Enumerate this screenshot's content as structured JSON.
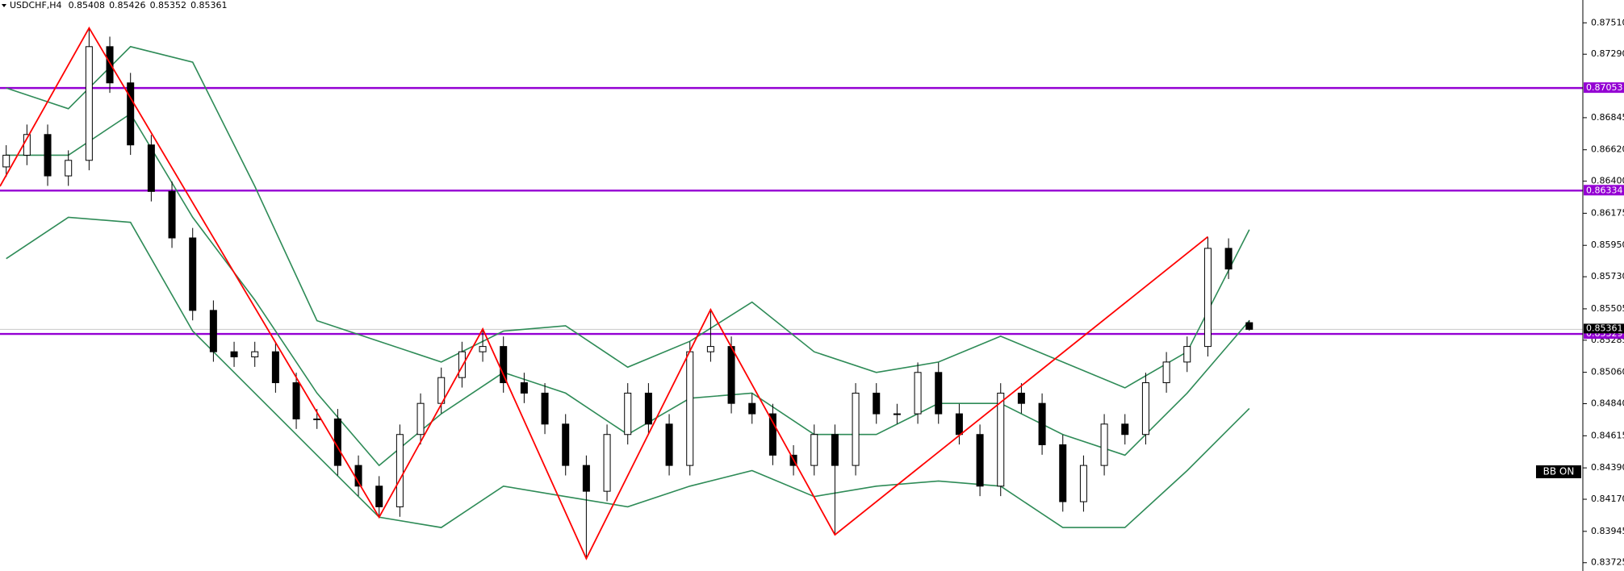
{
  "chart_data": {
    "type": "candlestick",
    "title": "USDCHF,H4",
    "open": [
      0.865,
      0.86582,
      0.86727,
      0.86437,
      0.86546,
      0.87343,
      0.87089,
      0.86654,
      0.86328,
      0.86002,
      0.85494,
      0.85204,
      0.85168,
      0.85204,
      0.84987,
      0.84733,
      0.84733,
      0.84407,
      0.84262,
      0.84117,
      0.84624,
      0.84842,
      0.85023,
      0.85204,
      0.85241,
      0.84987,
      0.84914,
      0.84697,
      0.84407,
      0.84226,
      0.84624,
      0.84914,
      0.84697,
      0.84407,
      0.85204,
      0.85241,
      0.84842,
      0.84769,
      0.84479,
      0.84407,
      0.84624,
      0.84407,
      0.84914,
      0.84769,
      0.84769,
      0.85059,
      0.84769,
      0.84624,
      0.84262,
      0.84914,
      0.84842,
      0.84552,
      0.84153,
      0.84407,
      0.84697,
      0.84624,
      0.84987,
      0.85132,
      0.85241,
      0.85929,
      0.85408
    ],
    "high": [
      0.86652,
      0.86797,
      0.86797,
      0.86616,
      0.87474,
      0.87413,
      0.87159,
      0.86724,
      0.86398,
      0.86072,
      0.85564,
      0.85274,
      0.85274,
      0.85274,
      0.85057,
      0.84803,
      0.84803,
      0.84477,
      0.84332,
      0.84694,
      0.84912,
      0.85093,
      0.85274,
      0.85364,
      0.85311,
      0.85057,
      0.84984,
      0.84767,
      0.84477,
      0.84694,
      0.84984,
      0.84984,
      0.84767,
      0.85274,
      0.855,
      0.85311,
      0.84912,
      0.84839,
      0.84549,
      0.84694,
      0.84694,
      0.84984,
      0.84984,
      0.84839,
      0.85129,
      0.85129,
      0.84839,
      0.84694,
      0.84984,
      0.84984,
      0.84912,
      0.84622,
      0.84477,
      0.84767,
      0.84767,
      0.85057,
      0.85202,
      0.85311,
      0.8601,
      0.85999,
      0.85426
    ],
    "low": [
      0.8643,
      0.86512,
      0.86367,
      0.86367,
      0.86476,
      0.87019,
      0.86584,
      0.86258,
      0.85932,
      0.85424,
      0.85134,
      0.85098,
      0.85098,
      0.84917,
      0.84663,
      0.84663,
      0.84337,
      0.84192,
      0.84044,
      0.84047,
      0.84554,
      0.84772,
      0.84953,
      0.85134,
      0.84917,
      0.84844,
      0.84627,
      0.84337,
      0.83754,
      0.84156,
      0.84554,
      0.84627,
      0.84337,
      0.84337,
      0.85134,
      0.84772,
      0.84699,
      0.84409,
      0.84337,
      0.84337,
      0.83921,
      0.84337,
      0.84699,
      0.84699,
      0.84699,
      0.84699,
      0.84554,
      0.84192,
      0.84192,
      0.84772,
      0.84482,
      0.84083,
      0.84083,
      0.84337,
      0.84554,
      0.84554,
      0.84917,
      0.85062,
      0.85171,
      0.85714,
      0.85352
    ],
    "close": [
      0.86582,
      0.86727,
      0.86437,
      0.86546,
      0.87343,
      0.87089,
      0.86654,
      0.86328,
      0.86002,
      0.85494,
      0.85204,
      0.85168,
      0.85204,
      0.84987,
      0.84733,
      0.84733,
      0.84407,
      0.84262,
      0.84117,
      0.84624,
      0.84842,
      0.85023,
      0.85204,
      0.85241,
      0.84987,
      0.84914,
      0.84697,
      0.84407,
      0.84226,
      0.84624,
      0.84914,
      0.84697,
      0.84407,
      0.85204,
      0.85241,
      0.84842,
      0.84769,
      0.84479,
      0.84407,
      0.84624,
      0.84407,
      0.84914,
      0.84769,
      0.84769,
      0.85059,
      0.84769,
      0.84624,
      0.84262,
      0.84914,
      0.84842,
      0.84552,
      0.84153,
      0.84407,
      0.84697,
      0.84624,
      0.84987,
      0.85132,
      0.85241,
      0.85929,
      0.85784,
      0.85361
    ],
    "color_up": "#ffffff",
    "color_down": "#000000",
    "xlim": [
      -0.3,
      76.1
    ],
    "ylim": [
      0.83667,
      0.8767
    ],
    "yticks": [
      {
        "value": 0.8751,
        "label": "0.87510"
      },
      {
        "value": 0.8729,
        "label": "0.87290"
      },
      0.86845,
      {
        "value": 0.8662,
        "label": "0.86620"
      },
      {
        "value": 0.864,
        "label": "0.86400"
      },
      0.86175,
      {
        "value": 0.8595,
        "label": "0.85950"
      },
      {
        "value": 0.8573,
        "label": "0.85730"
      },
      0.85505,
      0.85285,
      {
        "value": 0.8506,
        "label": "0.85060"
      },
      {
        "value": 0.8484,
        "label": "0.84840"
      },
      0.84615,
      {
        "value": 0.8439,
        "label": "0.84390"
      },
      {
        "value": 0.8417,
        "label": "0.84170"
      },
      0.83945,
      0.83725
    ],
    "bands": [
      {
        "color": "#2e8b57",
        "x": [
          0,
          3,
          6,
          9,
          12,
          15,
          18,
          21,
          24,
          27,
          30,
          33,
          36,
          39,
          42,
          45,
          48,
          51,
          54,
          57,
          60
        ],
        "values": [
          0.87053,
          0.86908,
          0.87343,
          0.87234,
          0.86364,
          0.85422,
          0.85277,
          0.85132,
          0.85349,
          0.85386,
          0.85096,
          0.85277,
          0.85552,
          0.85204,
          0.85059,
          0.85132,
          0.85313,
          0.85132,
          0.84951,
          0.85204,
          0.8606
        ]
      },
      {
        "color": "#2e8b57",
        "x": [
          0,
          3,
          6,
          9,
          12,
          15,
          18,
          21,
          24,
          27,
          30,
          33,
          36,
          39,
          42,
          45,
          48,
          51,
          54,
          57,
          60
        ],
        "values": [
          0.86582,
          0.86582,
          0.86872,
          0.86147,
          0.85567,
          0.84914,
          0.84407,
          0.84769,
          0.85059,
          0.84914,
          0.84624,
          0.84878,
          0.84914,
          0.84624,
          0.84624,
          0.84842,
          0.84842,
          0.84624,
          0.84479,
          0.84914,
          0.85422
        ]
      },
      {
        "color": "#2e8b57",
        "x": [
          0,
          3,
          6,
          9,
          12,
          15,
          18,
          21,
          24,
          27,
          30,
          33,
          36,
          39,
          42,
          45,
          48,
          51,
          54,
          57,
          60
        ],
        "values": [
          0.85857,
          0.86147,
          0.86111,
          0.85349,
          0.84914,
          0.84479,
          0.84044,
          0.83972,
          0.84262,
          0.84189,
          0.84117,
          0.84262,
          0.84371,
          0.84189,
          0.84262,
          0.84298,
          0.84262,
          0.83972,
          0.83972,
          0.84371,
          0.84806
        ]
      }
    ],
    "zigzag": {
      "color": "#ff0000",
      "x": [
        -0.3,
        4,
        18,
        23,
        28,
        34,
        40,
        58
      ],
      "values": [
        0.86364,
        0.87474,
        0.84044,
        0.85364,
        0.83754,
        0.855,
        0.83921,
        0.8601
      ]
    },
    "levels": {
      "color": "#9400d3",
      "values": [
        0.87053,
        0.86334,
        0.85329
      ]
    },
    "annotation": "BB ON"
  }
}
